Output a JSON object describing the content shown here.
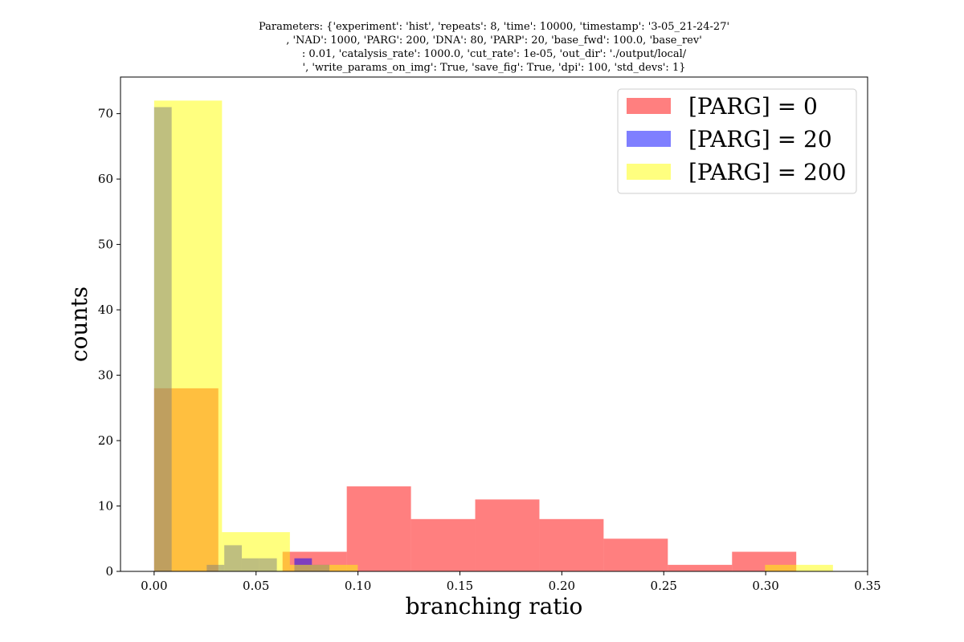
{
  "chart_data": {
    "type": "bar",
    "title": [
      "Parameters: {'experiment': 'hist', 'repeats': 8, 'time': 10000, 'timestamp': '3-05_21-24-27'",
      ", 'NAD': 1000, 'PARG': 200, 'DNA': 80, 'PARP': 20, 'base_fwd': 100.0, 'base_rev'",
      ": 0.01, 'catalysis_rate': 1000.0, 'cut_rate': 1e-05, 'out_dir': './output/local/",
      "', 'write_params_on_img': True, 'save_fig': True, 'dpi': 100, 'std_devs': 1}"
    ],
    "xlabel": "branching ratio",
    "ylabel": "counts",
    "xlim": [
      -0.0165,
      0.35
    ],
    "ylim": [
      0,
      75.6
    ],
    "xticks": [
      0.0,
      0.05,
      0.1,
      0.15,
      0.2,
      0.25,
      0.3,
      0.35
    ],
    "xtick_labels": [
      "0.00",
      "0.05",
      "0.10",
      "0.15",
      "0.20",
      "0.25",
      "0.30",
      "0.35"
    ],
    "yticks": [
      0,
      10,
      20,
      30,
      40,
      50,
      60,
      70
    ],
    "ytick_labels": [
      "0",
      "10",
      "20",
      "30",
      "40",
      "50",
      "60",
      "70"
    ],
    "grid": false,
    "legend_position": "top-right",
    "series": [
      {
        "name": "[PARG] = 0",
        "color": "#ff0000",
        "alpha": 0.5,
        "bins": [
          {
            "x0": 0.0,
            "x1": 0.0315,
            "count": 28
          },
          {
            "x0": 0.0315,
            "x1": 0.063,
            "count": 0
          },
          {
            "x0": 0.063,
            "x1": 0.0945,
            "count": 3
          },
          {
            "x0": 0.0945,
            "x1": 0.126,
            "count": 13
          },
          {
            "x0": 0.126,
            "x1": 0.1575,
            "count": 8
          },
          {
            "x0": 0.1575,
            "x1": 0.189,
            "count": 11
          },
          {
            "x0": 0.189,
            "x1": 0.2205,
            "count": 8
          },
          {
            "x0": 0.2205,
            "x1": 0.252,
            "count": 5
          },
          {
            "x0": 0.252,
            "x1": 0.2835,
            "count": 1
          },
          {
            "x0": 0.2835,
            "x1": 0.315,
            "count": 3
          }
        ]
      },
      {
        "name": "[PARG] = 20",
        "color": "#0000ff",
        "alpha": 0.5,
        "bins": [
          {
            "x0": 0.0,
            "x1": 0.0086,
            "count": 71
          },
          {
            "x0": 0.0086,
            "x1": 0.0172,
            "count": 0
          },
          {
            "x0": 0.0172,
            "x1": 0.0258,
            "count": 0
          },
          {
            "x0": 0.0258,
            "x1": 0.0344,
            "count": 1
          },
          {
            "x0": 0.0344,
            "x1": 0.043,
            "count": 4
          },
          {
            "x0": 0.043,
            "x1": 0.0516,
            "count": 2
          },
          {
            "x0": 0.0516,
            "x1": 0.0602,
            "count": 2
          },
          {
            "x0": 0.0602,
            "x1": 0.0688,
            "count": 0
          },
          {
            "x0": 0.0688,
            "x1": 0.0774,
            "count": 2
          },
          {
            "x0": 0.0774,
            "x1": 0.086,
            "count": 1
          }
        ]
      },
      {
        "name": "[PARG] = 200",
        "color": "#ffff00",
        "alpha": 0.5,
        "bins": [
          {
            "x0": 0.0,
            "x1": 0.0333,
            "count": 72
          },
          {
            "x0": 0.0333,
            "x1": 0.0666,
            "count": 6
          },
          {
            "x0": 0.0666,
            "x1": 0.0999,
            "count": 1
          },
          {
            "x0": 0.0999,
            "x1": 0.1332,
            "count": 0
          },
          {
            "x0": 0.1332,
            "x1": 0.1665,
            "count": 0
          },
          {
            "x0": 0.1665,
            "x1": 0.1998,
            "count": 0
          },
          {
            "x0": 0.1998,
            "x1": 0.2331,
            "count": 0
          },
          {
            "x0": 0.2331,
            "x1": 0.2664,
            "count": 0
          },
          {
            "x0": 0.2664,
            "x1": 0.2997,
            "count": 0
          },
          {
            "x0": 0.2997,
            "x1": 0.333,
            "count": 1
          }
        ]
      }
    ]
  }
}
